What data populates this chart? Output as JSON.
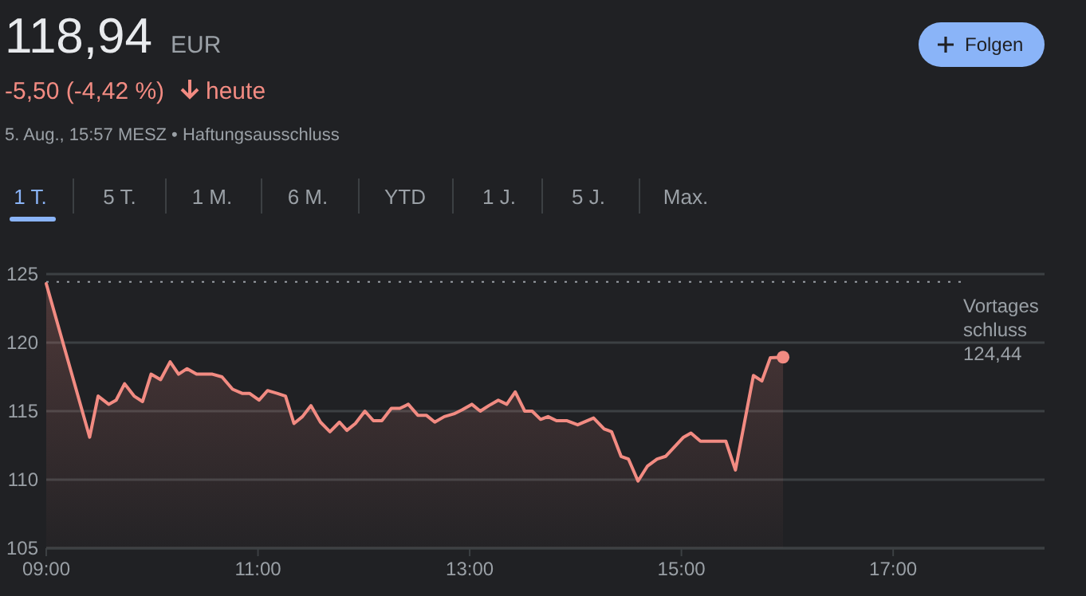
{
  "chart_data": {
    "type": "area",
    "title": "118,94",
    "annotations": [
      "EUR",
      "-5,50 (-4,42 %)",
      "heute",
      "5. Aug., 15:57 MESZ • Haftungsausschluss",
      "Folgen",
      "1 T.",
      "5 T.",
      "1 M.",
      "6 M.",
      "YTD",
      "1 J.",
      "5 J.",
      "Max."
    ],
    "x": [
      9.0,
      9.41,
      9.49,
      9.59,
      9.66,
      9.74,
      9.83,
      9.91,
      9.99,
      10.08,
      10.17,
      10.25,
      10.33,
      10.42,
      10.57,
      10.66,
      10.76,
      10.85,
      10.92,
      11.01,
      11.09,
      11.18,
      11.26,
      11.34,
      11.42,
      11.5,
      11.59,
      11.68,
      11.77,
      11.84,
      11.92,
      12.01,
      12.09,
      12.17,
      12.26,
      12.34,
      12.42,
      12.51,
      12.59,
      12.67,
      12.76,
      12.85,
      12.93,
      13.02,
      13.1,
      13.18,
      13.27,
      13.35,
      13.43,
      13.52,
      13.59,
      13.67,
      13.74,
      13.82,
      13.92,
      14.02,
      14.17,
      14.27,
      14.34,
      14.43,
      14.5,
      14.59,
      14.68,
      14.77,
      14.85,
      15.02,
      15.09,
      15.18,
      15.42,
      15.51,
      15.68,
      15.76,
      15.84,
      15.96
    ],
    "series": [
      {
        "color": "#f28b82",
        "values": [
          124.3,
          113.1,
          116.1,
          115.5,
          115.8,
          117.0,
          116.1,
          115.7,
          117.7,
          117.3,
          118.6,
          117.7,
          118.1,
          117.7,
          117.7,
          117.5,
          116.6,
          116.3,
          116.3,
          115.8,
          116.5,
          116.3,
          116.1,
          114.1,
          114.6,
          115.4,
          114.2,
          113.5,
          114.2,
          113.6,
          114.1,
          115.0,
          114.3,
          114.3,
          115.2,
          115.2,
          115.5,
          114.7,
          114.7,
          114.2,
          114.6,
          114.8,
          115.1,
          115.5,
          115.0,
          115.4,
          115.8,
          115.5,
          116.4,
          115.0,
          115.0,
          114.4,
          114.6,
          114.3,
          114.3,
          114.0,
          114.5,
          113.7,
          113.5,
          111.7,
          111.5,
          109.9,
          111.0,
          111.5,
          111.7,
          113.1,
          113.4,
          112.8,
          112.8,
          110.7,
          117.6,
          117.2,
          118.9,
          118.94
        ]
      }
    ],
    "xlim": [
      9,
      18.43
    ],
    "xticks": [
      {
        "value": 9,
        "label": "09:00"
      },
      {
        "value": 11,
        "label": "11:00"
      },
      {
        "value": 13,
        "label": "13:00"
      },
      {
        "value": 15,
        "label": "15:00"
      },
      {
        "value": 17,
        "label": "17:00"
      }
    ],
    "ylim": [
      105,
      125
    ],
    "yticks": [
      105,
      110,
      115,
      120,
      125
    ],
    "grid": "y",
    "ref_lines": [
      {
        "axis": "y",
        "value": 124.44,
        "label": "Vortagesschluss 124,44",
        "line_style": "dotted",
        "color": "#9aa0a6"
      }
    ]
  }
}
